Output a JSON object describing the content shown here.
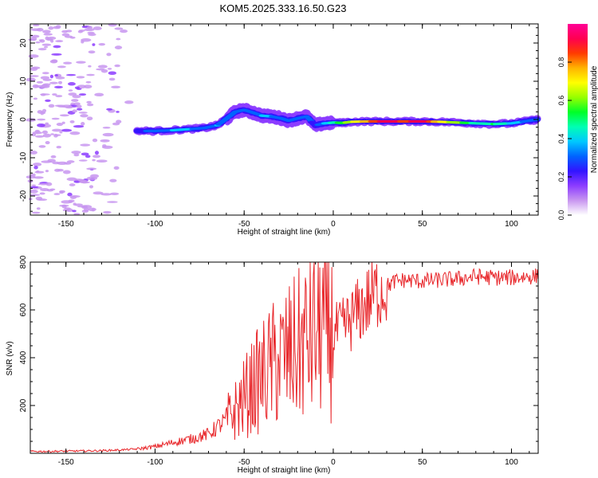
{
  "figure_title": "KOM5.2025.333.16.50.G23",
  "colors": {
    "snr_line": "#e8262a",
    "axis": "#000000",
    "background": "#ffffff",
    "colormap": [
      "#ffffff",
      "#c896f0",
      "#8c3cff",
      "#3214ff",
      "#0064ff",
      "#00c8ff",
      "#00ffb4",
      "#00ff28",
      "#96ff00",
      "#ffff00",
      "#ffb400",
      "#ff3c00",
      "#ff0050",
      "#ff0096"
    ]
  },
  "chart_data": [
    {
      "type": "heatmap",
      "title": "KOM5.2025.333.16.50.G23",
      "xlabel": "Height of straight line (km)",
      "ylabel": "Frequency (Hz)",
      "xlim": [
        -170,
        115
      ],
      "ylim": [
        -25,
        25
      ],
      "xticks": [
        -150,
        -100,
        -50,
        0,
        50,
        100
      ],
      "yticks": [
        -20,
        -10,
        0,
        10,
        20
      ],
      "colorbar": {
        "label": "Normalized spectral amplitude",
        "range": [
          0,
          1
        ],
        "ticks": [
          "0.0",
          "0.2",
          "0.4",
          "0.6",
          "0.8"
        ]
      },
      "trace": {
        "x": [
          -110,
          -100,
          -90,
          -80,
          -72,
          -65,
          -60,
          -55,
          -50,
          -45,
          -40,
          -35,
          -30,
          -25,
          -20,
          -15,
          -10,
          -5,
          0,
          5,
          10,
          20,
          30,
          40,
          50,
          60,
          70,
          80,
          90,
          100,
          110,
          115
        ],
        "freq": [
          -3.0,
          -3.0,
          -2.8,
          -2.5,
          -2.2,
          -1.5,
          0.2,
          2.0,
          2.5,
          1.8,
          1.0,
          0.8,
          0.4,
          -0.3,
          0.3,
          0.8,
          -1.5,
          -1.0,
          -0.8,
          -0.9,
          -0.6,
          -0.5,
          -0.5,
          -0.5,
          -0.5,
          -0.6,
          -0.8,
          -1.0,
          -1.2,
          -1.0,
          -0.3,
          0.0
        ],
        "amplitude": [
          0.25,
          0.3,
          0.35,
          0.35,
          0.3,
          0.35,
          0.3,
          0.3,
          0.3,
          0.3,
          0.35,
          0.35,
          0.3,
          0.3,
          0.3,
          0.3,
          0.25,
          0.35,
          0.45,
          0.55,
          0.65,
          0.8,
          0.95,
          0.85,
          0.95,
          0.7,
          0.6,
          0.45,
          0.5,
          0.4,
          0.3,
          0.3
        ]
      },
      "noise_region_x": [
        -170,
        -112
      ]
    },
    {
      "type": "line",
      "xlabel": "Height of straight line (km)",
      "ylabel": "SNR (v/v)",
      "xlim": [
        -170,
        115
      ],
      "ylim": [
        0,
        800
      ],
      "xticks": [
        -150,
        -100,
        -50,
        0,
        50,
        100
      ],
      "yticks": [
        200,
        400,
        600,
        800
      ],
      "series": [
        {
          "name": "SNR",
          "x": [
            -170,
            -160,
            -150,
            -140,
            -130,
            -120,
            -110,
            -100,
            -90,
            -80,
            -70,
            -65,
            -60,
            -55,
            -50,
            -45,
            -40,
            -35,
            -30,
            -25,
            -20,
            -15,
            -10,
            -6,
            -3,
            0,
            5,
            10,
            15,
            20,
            25,
            30,
            35,
            40,
            50,
            60,
            70,
            80,
            90,
            100,
            110,
            115
          ],
          "values": [
            8,
            8,
            9,
            10,
            11,
            14,
            18,
            28,
            45,
            60,
            80,
            110,
            140,
            180,
            230,
            280,
            320,
            360,
            390,
            410,
            440,
            470,
            500,
            540,
            480,
            500,
            520,
            560,
            600,
            640,
            680,
            700,
            720,
            725,
            720,
            725,
            730,
            740,
            735,
            735,
            740,
            740
          ]
        }
      ]
    }
  ]
}
